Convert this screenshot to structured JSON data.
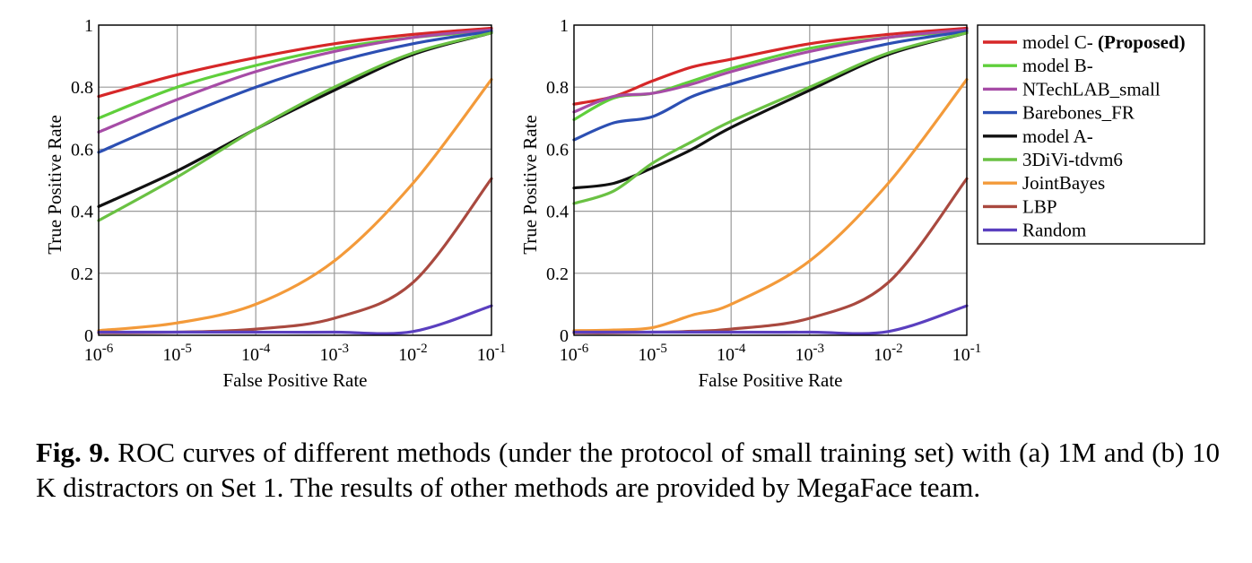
{
  "chart_data": [
    {
      "type": "line",
      "x_scale": "log",
      "xlim": [
        1e-06,
        0.1
      ],
      "ylim": [
        0,
        1
      ],
      "xlabel": "False Positive Rate",
      "ylabel": "True Positive Rate",
      "grid": true,
      "x_ticks": [
        {
          "base": "10",
          "exp": "-6"
        },
        {
          "base": "10",
          "exp": "-5"
        },
        {
          "base": "10",
          "exp": "-4"
        },
        {
          "base": "10",
          "exp": "-3"
        },
        {
          "base": "10",
          "exp": "-2"
        },
        {
          "base": "10",
          "exp": "-1"
        }
      ],
      "y_ticks": [
        "0",
        "0.2",
        "0.4",
        "0.6",
        "0.8",
        "1"
      ],
      "x": [
        1e-06,
        1e-05,
        0.0001,
        0.001,
        0.01,
        0.1
      ],
      "series": [
        {
          "name": "model C- (Proposed)",
          "color": "#d62728",
          "values": [
            0.77,
            0.84,
            0.895,
            0.94,
            0.97,
            0.99
          ]
        },
        {
          "name": "model B-",
          "color": "#5fcf3b",
          "values": [
            0.7,
            0.8,
            0.87,
            0.925,
            0.96,
            0.98
          ]
        },
        {
          "name": "NTechLAB_small",
          "color": "#a64ca6",
          "values": [
            0.655,
            0.76,
            0.85,
            0.915,
            0.96,
            0.985
          ]
        },
        {
          "name": "Barebones_FR",
          "color": "#2c4fb3",
          "values": [
            0.59,
            0.7,
            0.8,
            0.88,
            0.94,
            0.98
          ]
        },
        {
          "name": "model A-",
          "color": "#111111",
          "values": [
            0.415,
            0.53,
            0.665,
            0.79,
            0.905,
            0.975
          ]
        },
        {
          "name": "3DiVi-tdvm6",
          "color": "#6ac143",
          "values": [
            0.37,
            0.51,
            0.665,
            0.8,
            0.91,
            0.975
          ]
        },
        {
          "name": "JointBayes",
          "color": "#f39a3a",
          "values": [
            0.015,
            0.04,
            0.1,
            0.24,
            0.49,
            0.825
          ]
        },
        {
          "name": "LBP",
          "color": "#a9493f",
          "values": [
            0.008,
            0.01,
            0.02,
            0.055,
            0.17,
            0.505
          ]
        },
        {
          "name": "Random",
          "color": "#5a3fbf",
          "values": [
            0.01,
            0.01,
            0.01,
            0.01,
            0.012,
            0.095
          ]
        }
      ]
    },
    {
      "type": "line",
      "x_scale": "log",
      "xlim": [
        1e-06,
        0.1
      ],
      "ylim": [
        0,
        1
      ],
      "xlabel": "False Positive Rate",
      "ylabel": "True Positive Rate",
      "grid": true,
      "x_ticks": [
        {
          "base": "10",
          "exp": "-6"
        },
        {
          "base": "10",
          "exp": "-5"
        },
        {
          "base": "10",
          "exp": "-4"
        },
        {
          "base": "10",
          "exp": "-3"
        },
        {
          "base": "10",
          "exp": "-2"
        },
        {
          "base": "10",
          "exp": "-1"
        }
      ],
      "y_ticks": [
        "0",
        "0.2",
        "0.4",
        "0.6",
        "0.8",
        "1"
      ],
      "x": [
        1e-06,
        3.2e-06,
        1e-05,
        3.2e-05,
        0.0001,
        0.001,
        0.01,
        0.1
      ],
      "series": [
        {
          "name": "model C- (Proposed)",
          "color": "#d62728",
          "values": [
            0.745,
            0.77,
            0.82,
            0.865,
            0.89,
            0.94,
            0.97,
            0.99
          ]
        },
        {
          "name": "model B-",
          "color": "#5fcf3b",
          "values": [
            0.695,
            0.765,
            0.78,
            0.82,
            0.86,
            0.925,
            0.96,
            0.98
          ]
        },
        {
          "name": "NTechLAB_small",
          "color": "#a64ca6",
          "values": [
            0.72,
            0.77,
            0.78,
            0.81,
            0.85,
            0.915,
            0.96,
            0.985
          ]
        },
        {
          "name": "Barebones_FR",
          "color": "#2c4fb3",
          "values": [
            0.63,
            0.685,
            0.705,
            0.77,
            0.81,
            0.88,
            0.94,
            0.98
          ]
        },
        {
          "name": "model A-",
          "color": "#111111",
          "values": [
            0.475,
            0.49,
            0.54,
            0.6,
            0.67,
            0.79,
            0.905,
            0.975
          ]
        },
        {
          "name": "3DiVi-tdvm6",
          "color": "#6ac143",
          "values": [
            0.425,
            0.465,
            0.555,
            0.625,
            0.69,
            0.8,
            0.91,
            0.975
          ]
        },
        {
          "name": "JointBayes",
          "color": "#f39a3a",
          "values": [
            0.015,
            0.017,
            0.025,
            0.065,
            0.1,
            0.24,
            0.49,
            0.825
          ]
        },
        {
          "name": "LBP",
          "color": "#a9493f",
          "values": [
            0.008,
            0.008,
            0.01,
            0.013,
            0.02,
            0.055,
            0.17,
            0.505
          ]
        },
        {
          "name": "Random",
          "color": "#5a3fbf",
          "values": [
            0.01,
            0.01,
            0.01,
            0.01,
            0.01,
            0.01,
            0.012,
            0.095
          ]
        }
      ]
    }
  ],
  "legend": [
    {
      "name": "model C- ",
      "bold_suffix": "(Proposed)",
      "color": "#d62728"
    },
    {
      "name": "model B-",
      "color": "#5fcf3b"
    },
    {
      "name": "NTechLAB_small",
      "color": "#a64ca6"
    },
    {
      "name": "Barebones_FR",
      "color": "#2c4fb3"
    },
    {
      "name": "model A-",
      "color": "#111111"
    },
    {
      "name": "3DiVi-tdvm6",
      "color": "#6ac143"
    },
    {
      "name": "JointBayes",
      "color": "#f39a3a"
    },
    {
      "name": "LBP",
      "color": "#a9493f"
    },
    {
      "name": "Random",
      "color": "#5a3fbf"
    }
  ],
  "caption": {
    "label": "Fig. 9.",
    "text": " ROC curves of different methods (under the protocol of small training set) with (a) 1M and (b) 10 K distractors on Set 1. The results of other methods are provided by MegaFace team."
  }
}
